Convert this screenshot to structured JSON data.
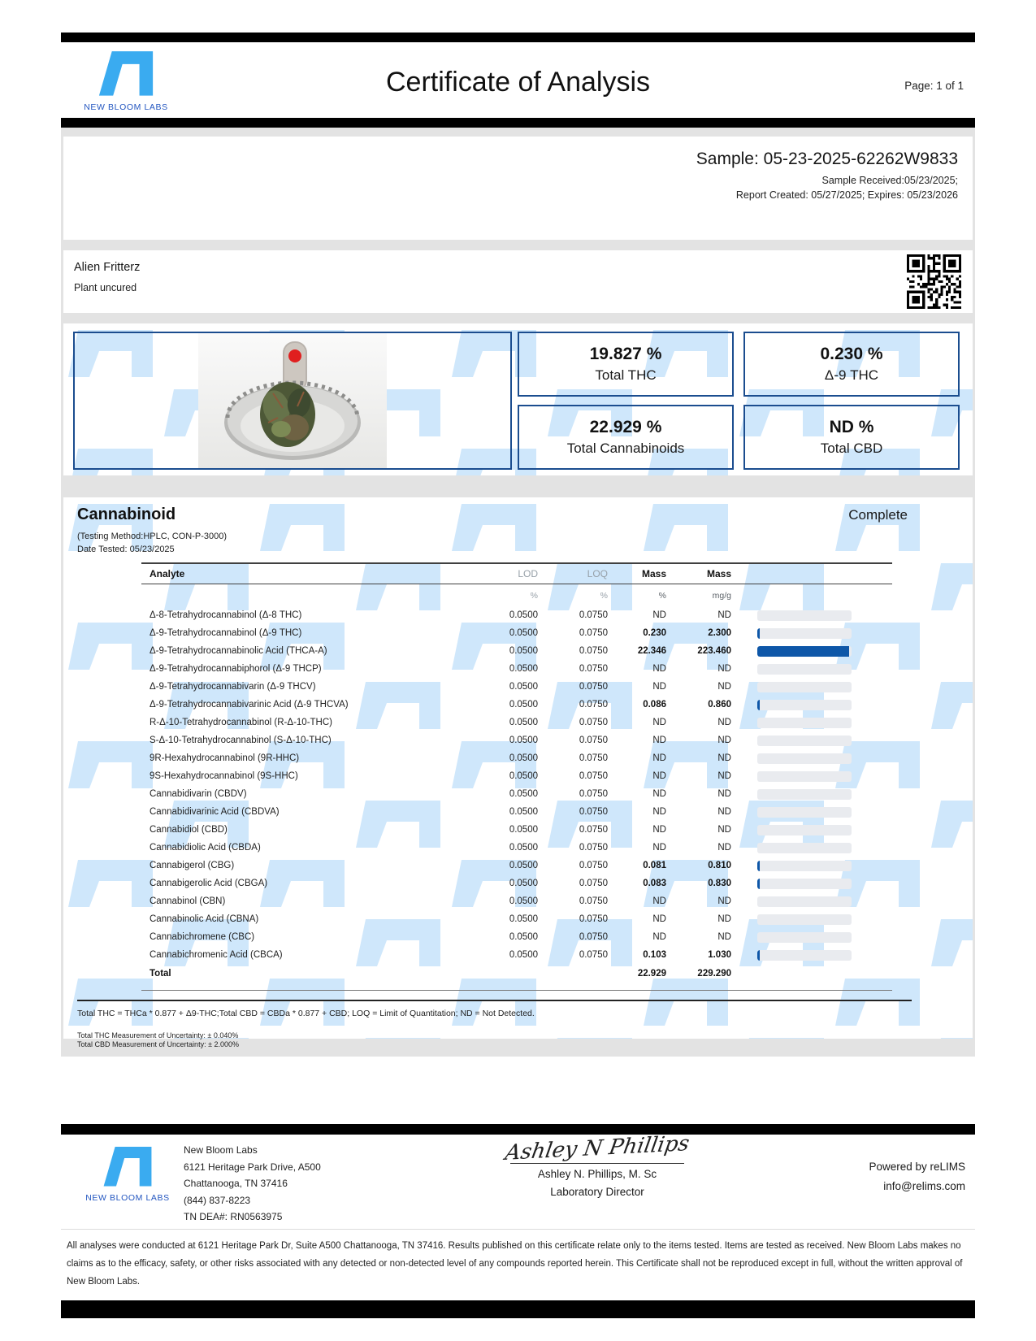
{
  "header": {
    "title": "Certificate of Analysis",
    "page": "Page: 1 of 1",
    "logo_text": "NEW BLOOM LABS"
  },
  "sample": {
    "id_line": "Sample: 05-23-2025-62262W9833",
    "received": "Sample Received:05/23/2025;",
    "created_expires": "Report Created: 05/27/2025; Expires: 05/23/2026"
  },
  "product": {
    "name": "Alien Fritterz",
    "type": "Plant uncured"
  },
  "summary": [
    {
      "value": "19.827 %",
      "label": "Total THC"
    },
    {
      "value": "0.230 %",
      "label": "Δ-9 THC"
    },
    {
      "value": "22.929 %",
      "label": "Total Cannabinoids"
    },
    {
      "value": "ND %",
      "label": "Total CBD"
    }
  ],
  "section": {
    "title": "Cannabinoid",
    "status": "Complete",
    "method": "(Testing Method:HPLC, CON-P-3000)",
    "date_tested": "Date Tested: 05/23/2025"
  },
  "table": {
    "headers": [
      "Analyte",
      "LOD",
      "LOQ",
      "Mass",
      "Mass"
    ],
    "units": {
      "lod": "%",
      "loq": "%",
      "mass_pct": "%",
      "mass_mgg": "mg/g"
    },
    "bar_scale_max_pct": 22.929,
    "rows": [
      {
        "analyte": "Δ-8-Tetrahydrocannabinol (Δ-8 THC)",
        "lod": "0.0500",
        "loq": "0.0750",
        "mass_pct": "ND",
        "mass_mgg": "ND"
      },
      {
        "analyte": "Δ-9-Tetrahydrocannabinol (Δ-9 THC)",
        "lod": "0.0500",
        "loq": "0.0750",
        "mass_pct": "0.230",
        "mass_mgg": "2.300"
      },
      {
        "analyte": "Δ-9-Tetrahydrocannabinolic Acid (THCA-A)",
        "lod": "0.0500",
        "loq": "0.0750",
        "mass_pct": "22.346",
        "mass_mgg": "223.460"
      },
      {
        "analyte": "Δ-9-Tetrahydrocannabiphorol (Δ-9 THCP)",
        "lod": "0.0500",
        "loq": "0.0750",
        "mass_pct": "ND",
        "mass_mgg": "ND"
      },
      {
        "analyte": "Δ-9-Tetrahydrocannabivarin (Δ-9 THCV)",
        "lod": "0.0500",
        "loq": "0.0750",
        "mass_pct": "ND",
        "mass_mgg": "ND"
      },
      {
        "analyte": "Δ-9-Tetrahydrocannabivarinic Acid (Δ-9 THCVA)",
        "lod": "0.0500",
        "loq": "0.0750",
        "mass_pct": "0.086",
        "mass_mgg": "0.860"
      },
      {
        "analyte": "R-Δ-10-Tetrahydrocannabinol (R-Δ-10-THC)",
        "lod": "0.0500",
        "loq": "0.0750",
        "mass_pct": "ND",
        "mass_mgg": "ND"
      },
      {
        "analyte": "S-Δ-10-Tetrahydrocannabinol (S-Δ-10-THC)",
        "lod": "0.0500",
        "loq": "0.0750",
        "mass_pct": "ND",
        "mass_mgg": "ND"
      },
      {
        "analyte": "9R-Hexahydrocannabinol (9R-HHC)",
        "lod": "0.0500",
        "loq": "0.0750",
        "mass_pct": "ND",
        "mass_mgg": "ND"
      },
      {
        "analyte": "9S-Hexahydrocannabinol (9S-HHC)",
        "lod": "0.0500",
        "loq": "0.0750",
        "mass_pct": "ND",
        "mass_mgg": "ND"
      },
      {
        "analyte": "Cannabidivarin (CBDV)",
        "lod": "0.0500",
        "loq": "0.0750",
        "mass_pct": "ND",
        "mass_mgg": "ND"
      },
      {
        "analyte": "Cannabidivarinic Acid (CBDVA)",
        "lod": "0.0500",
        "loq": "0.0750",
        "mass_pct": "ND",
        "mass_mgg": "ND"
      },
      {
        "analyte": "Cannabidiol (CBD)",
        "lod": "0.0500",
        "loq": "0.0750",
        "mass_pct": "ND",
        "mass_mgg": "ND"
      },
      {
        "analyte": "Cannabidiolic Acid (CBDA)",
        "lod": "0.0500",
        "loq": "0.0750",
        "mass_pct": "ND",
        "mass_mgg": "ND"
      },
      {
        "analyte": "Cannabigerol (CBG)",
        "lod": "0.0500",
        "loq": "0.0750",
        "mass_pct": "0.081",
        "mass_mgg": "0.810"
      },
      {
        "analyte": "Cannabigerolic Acid (CBGA)",
        "lod": "0.0500",
        "loq": "0.0750",
        "mass_pct": "0.083",
        "mass_mgg": "0.830"
      },
      {
        "analyte": "Cannabinol (CBN)",
        "lod": "0.0500",
        "loq": "0.0750",
        "mass_pct": "ND",
        "mass_mgg": "ND"
      },
      {
        "analyte": "Cannabinolic Acid (CBNA)",
        "lod": "0.0500",
        "loq": "0.0750",
        "mass_pct": "ND",
        "mass_mgg": "ND"
      },
      {
        "analyte": "Cannabichromene (CBC)",
        "lod": "0.0500",
        "loq": "0.0750",
        "mass_pct": "ND",
        "mass_mgg": "ND"
      },
      {
        "analyte": "Cannabichromenic Acid (CBCA)",
        "lod": "0.0500",
        "loq": "0.0750",
        "mass_pct": "0.103",
        "mass_mgg": "1.030"
      }
    ],
    "total": {
      "label": "Total",
      "mass_pct": "22.929",
      "mass_mgg": "229.290"
    }
  },
  "footnotes": {
    "formula": "Total THC = THCa * 0.877 + Δ9-THC;Total CBD = CBDa * 0.877 + CBD; LOQ = Limit of Quantitation; ND = Not Detected.",
    "thc_unc": "Total THC Measurement of Uncertainty: ± 0.040%",
    "cbd_unc": "Total CBD Measurement of Uncertainty: ± 2.000%"
  },
  "footer": {
    "logo_text": "NEW BLOOM LABS",
    "lab_lines": [
      "New Bloom Labs",
      "6121 Heritage Park Drive, A500",
      "Chattanooga, TN 37416",
      "(844) 837-8223",
      "TN DEA#: RN0563975"
    ],
    "signature": "Ashley N Phillips",
    "signer": "Ashley N. Phillips, M. Sc",
    "signer_title": "Laboratory Director",
    "powered": "Powered by reLIMS",
    "email": "info@relims.com"
  },
  "disclaimer": "All analyses were conducted at 6121 Heritage Park Dr, Suite A500 Chattanooga, TN 37416. Results published on this certificate relate only to the items tested. Items are tested as received. New Bloom Labs makes no claims as to the efficacy, safety, or other risks associated with any detected or non-detected level of any compounds reported herein. This Certificate shall not be reproduced except in full, without the written approval of New Bloom Labs.",
  "colors": {
    "logo_blue": "#3aabf0",
    "logo_text_blue": "#2356c0",
    "navy_border": "#1b4d8f",
    "bar_fill": "#0e57a8",
    "bar_track": "#e9ebef",
    "watermark_blue": "#cfe7fb",
    "page_gray": "#e3e3e3"
  }
}
